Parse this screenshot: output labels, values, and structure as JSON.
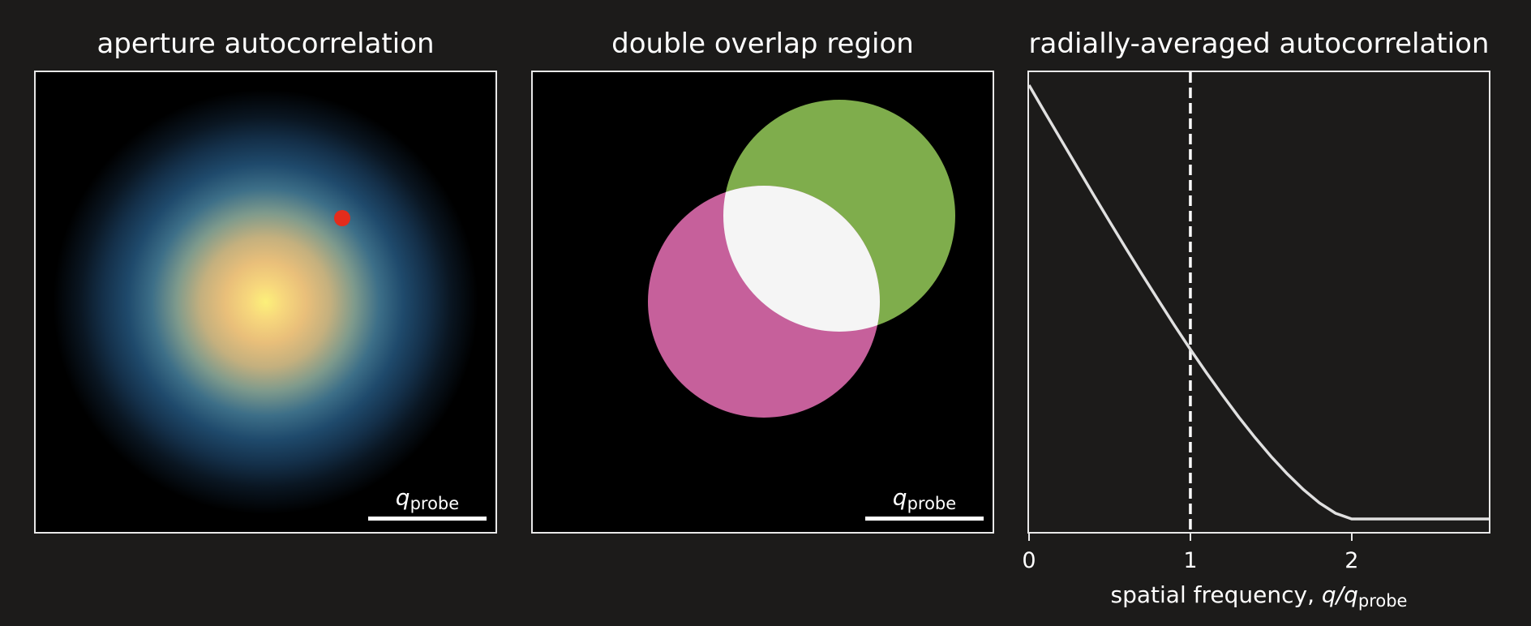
{
  "panels": {
    "autocorrelation": {
      "title": "aperture autocorrelation",
      "scale_bar": {
        "symbol": "q",
        "subscript": "probe"
      },
      "marker_color": "#e32c1c"
    },
    "overlap": {
      "title": "double overlap region",
      "scale_bar": {
        "symbol": "q",
        "subscript": "probe"
      },
      "colors": {
        "circle_a": "#7fad4c",
        "circle_b": "#c6609b",
        "intersection": "#f5f5f5"
      }
    },
    "radial": {
      "title": "radially-averaged autocorrelation",
      "xlabel_prefix": "spatial frequency, ",
      "xlabel_var": "q/q",
      "xlabel_sub": "probe"
    }
  },
  "chart_data": {
    "type": "line",
    "title": "radially-averaged autocorrelation",
    "xlabel": "spatial frequency, q/q_probe",
    "ylabel": "",
    "xlim": [
      0,
      2.85
    ],
    "ylim": [
      -0.03,
      1.03
    ],
    "xticks": [
      "0",
      "1",
      "2"
    ],
    "vline": {
      "x": 1,
      "style": "dashed",
      "color": "#ffffff"
    },
    "series": [
      {
        "color": "#e0e0e0",
        "x": [
          0,
          0.1,
          0.2,
          0.3,
          0.4,
          0.5,
          0.6,
          0.7,
          0.8,
          0.9,
          1.0,
          1.1,
          1.2,
          1.3,
          1.4,
          1.5,
          1.6,
          1.7,
          1.8,
          1.9,
          2.0,
          2.2,
          2.4,
          2.6,
          2.85
        ],
        "values": [
          1.0,
          0.936,
          0.873,
          0.81,
          0.747,
          0.685,
          0.624,
          0.564,
          0.505,
          0.447,
          0.391,
          0.337,
          0.285,
          0.235,
          0.188,
          0.144,
          0.104,
          0.068,
          0.037,
          0.013,
          0.0,
          0.0,
          0.0,
          0.0,
          0.0
        ]
      }
    ]
  }
}
